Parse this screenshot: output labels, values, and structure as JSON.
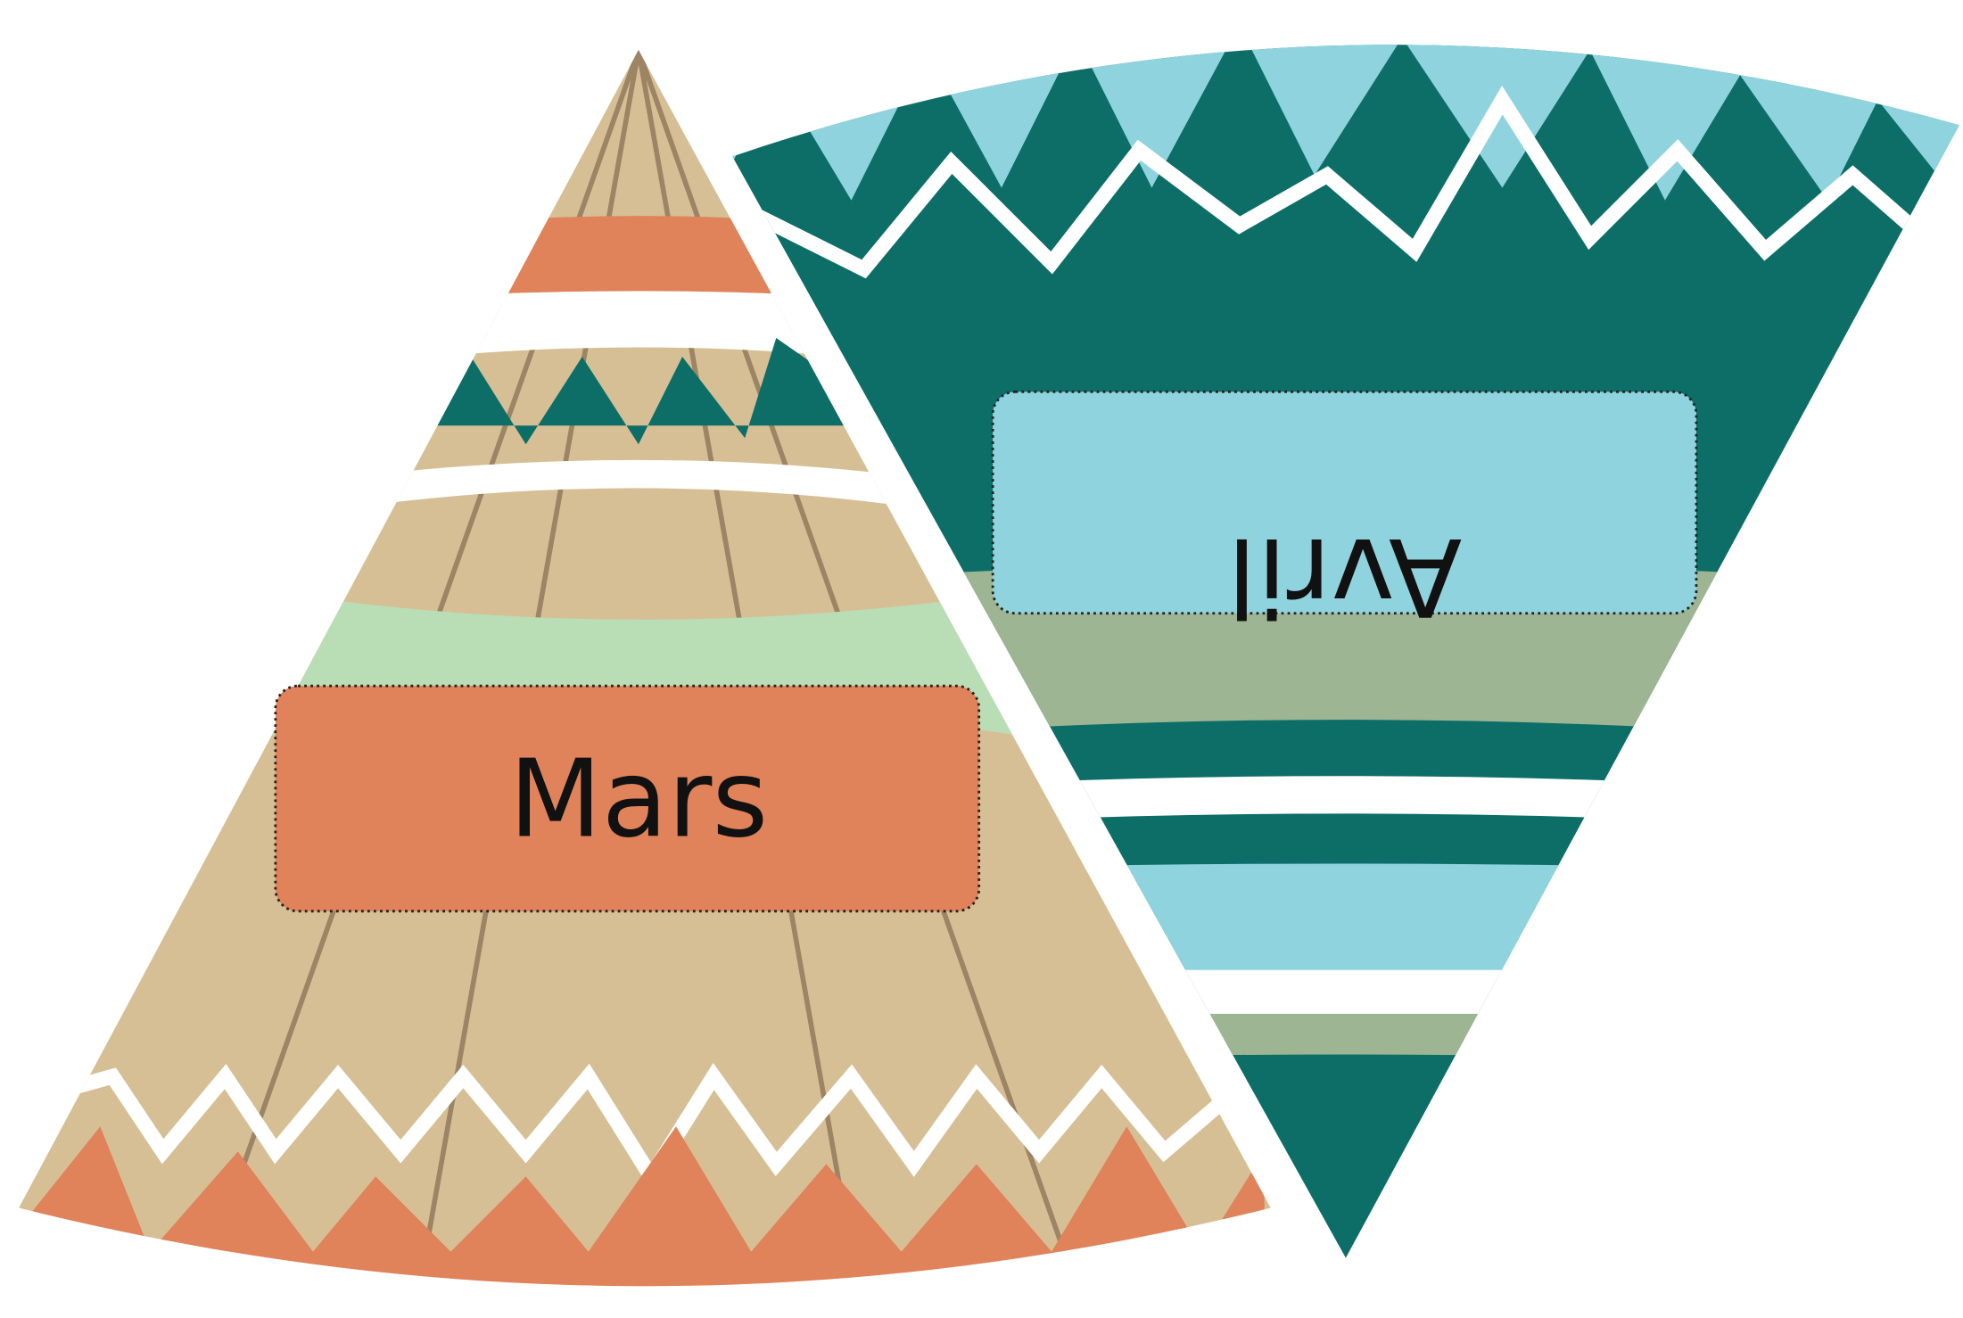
{
  "teepees": [
    {
      "label": "Mars"
    },
    {
      "label": "Avril"
    }
  ]
}
